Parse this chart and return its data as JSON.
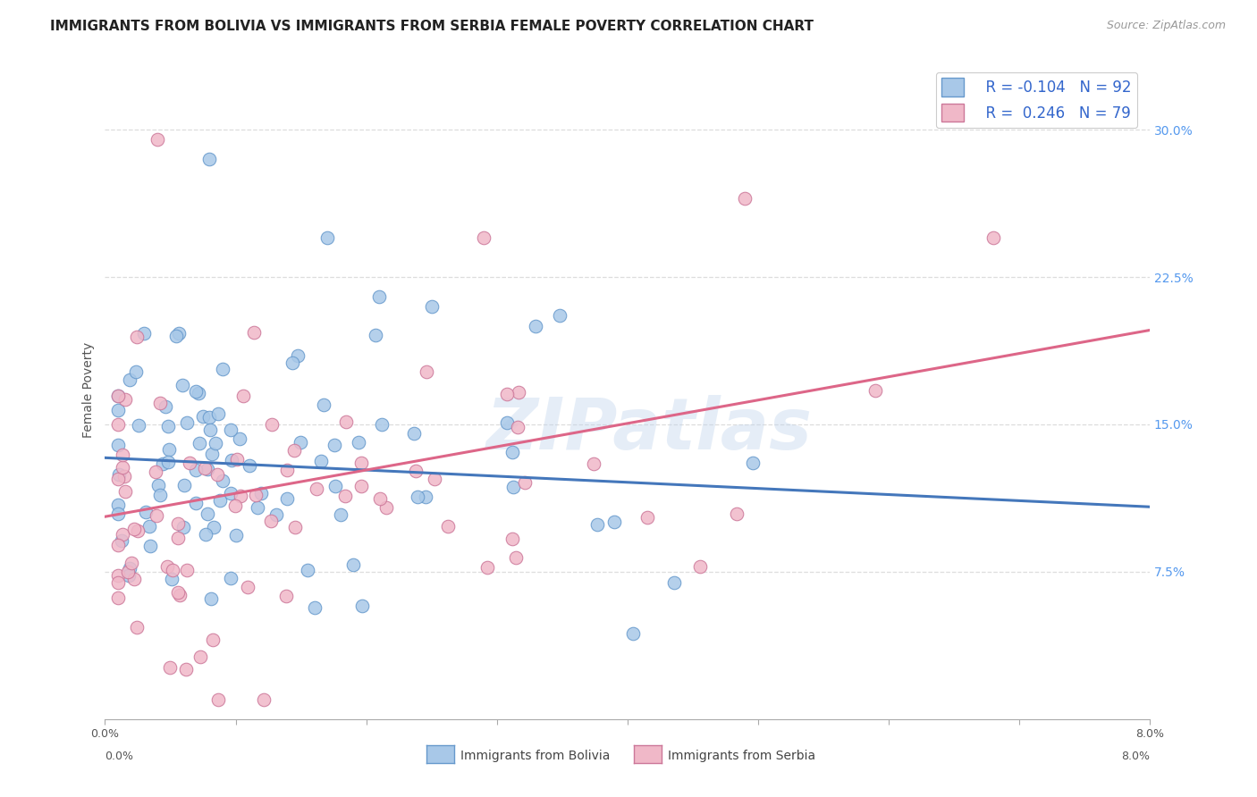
{
  "title": "IMMIGRANTS FROM BOLIVIA VS IMMIGRANTS FROM SERBIA FEMALE POVERTY CORRELATION CHART",
  "source": "Source: ZipAtlas.com",
  "ylabel": "Female Poverty",
  "yticks": [
    0.075,
    0.15,
    0.225,
    0.3
  ],
  "ytick_labels": [
    "7.5%",
    "15.0%",
    "22.5%",
    "30.0%"
  ],
  "xlim": [
    0.0,
    0.08
  ],
  "ylim": [
    0.0,
    0.335
  ],
  "series": [
    {
      "name": "Immigrants from Bolivia",
      "color": "#a8c8e8",
      "edge_color": "#6699cc",
      "R": -0.104,
      "N": 92,
      "trend_color": "#4477bb",
      "trend_y0": 0.133,
      "trend_y1": 0.108
    },
    {
      "name": "Immigrants from Serbia",
      "color": "#f0b8c8",
      "edge_color": "#cc7799",
      "R": 0.246,
      "N": 79,
      "trend_color": "#dd6688",
      "trend_y0": 0.103,
      "trend_y1": 0.198
    }
  ],
  "watermark": "ZIPatlas",
  "background_color": "#ffffff",
  "grid_color": "#dddddd",
  "title_fontsize": 11,
  "axis_fontsize": 9,
  "legend_fontsize": 12
}
